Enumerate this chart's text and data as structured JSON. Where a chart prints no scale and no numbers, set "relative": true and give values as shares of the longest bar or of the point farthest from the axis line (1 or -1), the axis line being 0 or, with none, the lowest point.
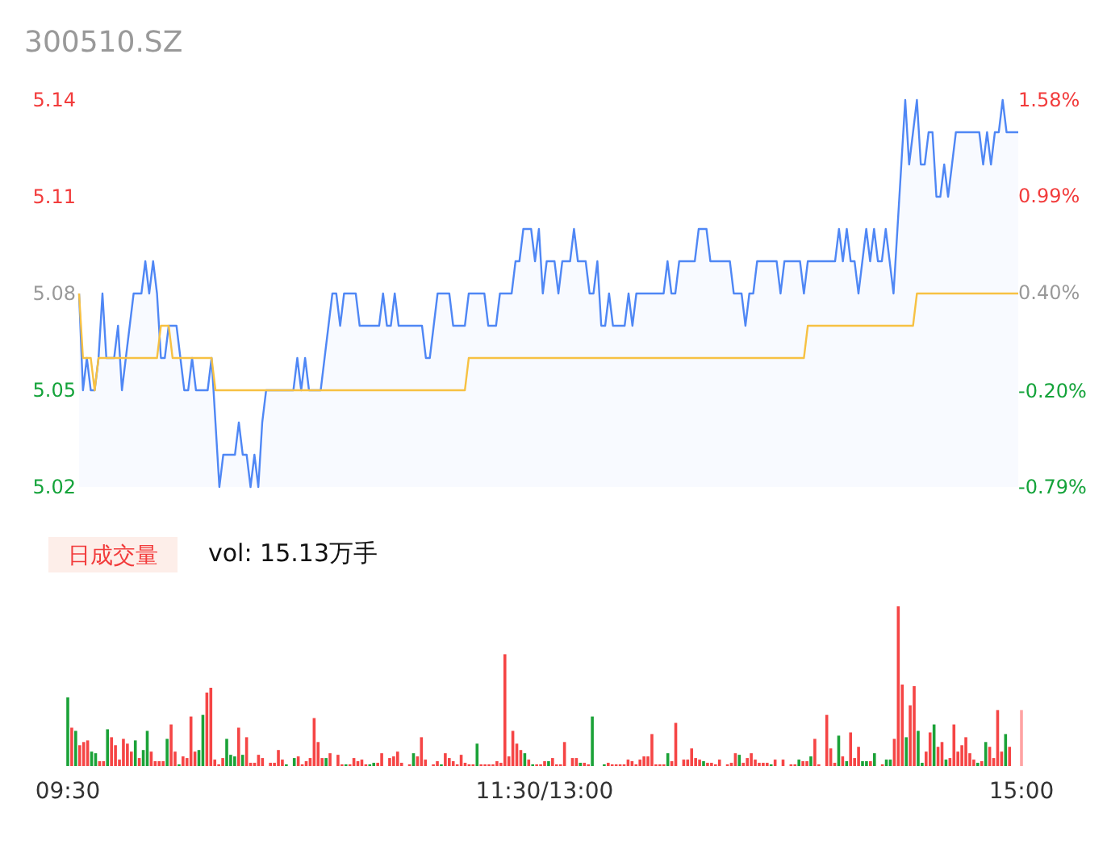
{
  "chart_data": [
    {
      "type": "line",
      "title": "300510.SZ",
      "ylim": [
        5.02,
        5.14
      ],
      "yticks": [
        5.02,
        5.05,
        5.08,
        5.11,
        5.14
      ],
      "y2lim": [
        -0.79,
        1.58
      ],
      "y2ticks": [
        {
          "value": -0.79,
          "label": "-0.79%"
        },
        {
          "value": -0.2,
          "label": "-0.20%"
        },
        {
          "value": 0.4,
          "label": "0.40%"
        },
        {
          "value": 0.99,
          "label": "0.99%"
        },
        {
          "value": 1.58,
          "label": "1.58%"
        }
      ],
      "tick_labels": "y",
      "categories": [
        null,
        null,
        null,
        null,
        null,
        null,
        null,
        null,
        null,
        null,
        null,
        null,
        null,
        null,
        null,
        null,
        null,
        null,
        null,
        null,
        null,
        null,
        null,
        null,
        null,
        null,
        null,
        null,
        null,
        null,
        null,
        null,
        null,
        null,
        null,
        null,
        null,
        null,
        null,
        null,
        null,
        null,
        null,
        null,
        null,
        null,
        null,
        null,
        null,
        null,
        null,
        null,
        null,
        null,
        null,
        null,
        null,
        null,
        null,
        null,
        null,
        null,
        null,
        null,
        null,
        null,
        null,
        null,
        null,
        null,
        null,
        null,
        null,
        null,
        null,
        null,
        null,
        null,
        null,
        null,
        null,
        null,
        null,
        null,
        null,
        null,
        null,
        null,
        null,
        null,
        null,
        null,
        null,
        null,
        null,
        null,
        null,
        null,
        null,
        null,
        null,
        null,
        null,
        null,
        null,
        null,
        null,
        null,
        null,
        null,
        null,
        null,
        null,
        null,
        null,
        null,
        null,
        null,
        null,
        null,
        null,
        null,
        null,
        null,
        null,
        null,
        null,
        null,
        null,
        null,
        null,
        null,
        null,
        null,
        null,
        null,
        null,
        null,
        null,
        null,
        null,
        null,
        null,
        null,
        null,
        null,
        null,
        null,
        null,
        null,
        null,
        null,
        null,
        null,
        null,
        null,
        null,
        null,
        null,
        null,
        null,
        null,
        null,
        null,
        null,
        null,
        null,
        null,
        null,
        null,
        null,
        null,
        null,
        null,
        null,
        null,
        null,
        null,
        null,
        null,
        null,
        null,
        null,
        null,
        null,
        null,
        null,
        null,
        null,
        null,
        null,
        null,
        null,
        null,
        null,
        null,
        null,
        null,
        null,
        null,
        null,
        null,
        null,
        null,
        null,
        null,
        null,
        null,
        null,
        null,
        null,
        null,
        null,
        null,
        null,
        null,
        null,
        null,
        null,
        null,
        null,
        null,
        null,
        null,
        null,
        null,
        null,
        null,
        null,
        null,
        null,
        null,
        null,
        null,
        null,
        null,
        null,
        null,
        null,
        null,
        null,
        null
      ],
      "series": [
        {
          "type": "area",
          "color": "#4f87f5",
          "values": [
            5.08,
            5.05,
            5.06,
            5.05,
            5.05,
            5.06,
            5.08,
            5.06,
            5.06,
            5.06,
            5.07,
            5.05,
            5.06,
            5.07,
            5.08,
            5.08,
            5.08,
            5.09,
            5.08,
            5.09,
            5.08,
            5.06,
            5.06,
            5.07,
            5.07,
            5.07,
            5.06,
            5.05,
            5.05,
            5.06,
            5.05,
            5.05,
            5.05,
            5.05,
            5.06,
            5.04,
            5.02,
            5.03,
            5.03,
            5.03,
            5.03,
            5.04,
            5.03,
            5.03,
            5.02,
            5.03,
            5.02,
            5.04,
            5.05,
            5.05,
            5.05,
            5.05,
            5.05,
            5.05,
            5.05,
            5.05,
            5.06,
            5.05,
            5.06,
            5.05,
            5.05,
            5.05,
            5.05,
            5.06,
            5.07,
            5.08,
            5.08,
            5.07,
            5.08,
            5.08,
            5.08,
            5.08,
            5.07,
            5.07,
            5.07,
            5.07,
            5.07,
            5.07,
            5.08,
            5.07,
            5.07,
            5.08,
            5.07,
            5.07,
            5.07,
            5.07,
            5.07,
            5.07,
            5.07,
            5.06,
            5.06,
            5.07,
            5.08,
            5.08,
            5.08,
            5.08,
            5.07,
            5.07,
            5.07,
            5.07,
            5.08,
            5.08,
            5.08,
            5.08,
            5.08,
            5.07,
            5.07,
            5.07,
            5.08,
            5.08,
            5.08,
            5.08,
            5.09,
            5.09,
            5.1,
            5.1,
            5.1,
            5.09,
            5.1,
            5.08,
            5.09,
            5.09,
            5.09,
            5.08,
            5.09,
            5.09,
            5.09,
            5.1,
            5.09,
            5.09,
            5.09,
            5.08,
            5.08,
            5.09,
            5.07,
            5.07,
            5.08,
            5.07,
            5.07,
            5.07,
            5.07,
            5.08,
            5.07,
            5.08,
            5.08,
            5.08,
            5.08,
            5.08,
            5.08,
            5.08,
            5.08,
            5.09,
            5.08,
            5.08,
            5.09,
            5.09,
            5.09,
            5.09,
            5.09,
            5.1,
            5.1,
            5.1,
            5.09,
            5.09,
            5.09,
            5.09,
            5.09,
            5.09,
            5.08,
            5.08,
            5.08,
            5.07,
            5.08,
            5.08,
            5.09,
            5.09,
            5.09,
            5.09,
            5.09,
            5.09,
            5.08,
            5.09,
            5.09,
            5.09,
            5.09,
            5.09,
            5.08,
            5.09,
            5.09,
            5.09,
            5.09,
            5.09,
            5.09,
            5.09,
            5.09,
            5.1,
            5.09,
            5.1,
            5.09,
            5.09,
            5.08,
            5.09,
            5.1,
            5.09,
            5.1,
            5.09,
            5.09,
            5.1,
            5.09,
            5.08,
            5.1,
            5.12,
            5.14,
            5.12,
            5.13,
            5.14,
            5.12,
            5.12,
            5.13,
            5.13,
            5.11,
            5.11,
            5.12,
            5.11,
            5.12,
            5.13,
            5.13,
            5.13,
            5.13,
            5.13,
            5.13,
            5.13,
            5.12,
            5.13,
            5.12,
            5.13,
            5.13,
            5.14,
            5.13,
            5.13,
            5.13,
            5.13
          ]
        },
        {
          "type": "line",
          "color": "#f7c143",
          "values": [
            5.08,
            5.06,
            5.06,
            5.06,
            5.05,
            5.06,
            5.06,
            5.06,
            5.06,
            5.06,
            5.06,
            5.06,
            5.06,
            5.06,
            5.06,
            5.06,
            5.06,
            5.06,
            5.06,
            5.06,
            5.06,
            5.07,
            5.07,
            5.07,
            5.06,
            5.06,
            5.06,
            5.06,
            5.06,
            5.06,
            5.06,
            5.06,
            5.06,
            5.06,
            5.06,
            5.05,
            5.05,
            5.05,
            5.05,
            5.05,
            5.05,
            5.05,
            5.05,
            5.05,
            5.05,
            5.05,
            5.05,
            5.05,
            5.05,
            5.05,
            5.05,
            5.05,
            5.05,
            5.05,
            5.05,
            5.05,
            5.05,
            5.05,
            5.05,
            5.05,
            5.05,
            5.05,
            5.05,
            5.05,
            5.05,
            5.05,
            5.05,
            5.05,
            5.05,
            5.05,
            5.05,
            5.05,
            5.05,
            5.05,
            5.05,
            5.05,
            5.05,
            5.05,
            5.05,
            5.05,
            5.05,
            5.05,
            5.05,
            5.05,
            5.05,
            5.05,
            5.05,
            5.05,
            5.05,
            5.05,
            5.05,
            5.05,
            5.05,
            5.05,
            5.05,
            5.05,
            5.05,
            5.05,
            5.05,
            5.05,
            5.06,
            5.06,
            5.06,
            5.06,
            5.06,
            5.06,
            5.06,
            5.06,
            5.06,
            5.06,
            5.06,
            5.06,
            5.06,
            5.06,
            5.06,
            5.06,
            5.06,
            5.06,
            5.06,
            5.06,
            5.06,
            5.06,
            5.06,
            5.06,
            5.06,
            5.06,
            5.06,
            5.06,
            5.06,
            5.06,
            5.06,
            5.06,
            5.06,
            5.06,
            5.06,
            5.06,
            5.06,
            5.06,
            5.06,
            5.06,
            5.06,
            5.06,
            5.06,
            5.06,
            5.06,
            5.06,
            5.06,
            5.06,
            5.06,
            5.06,
            5.06,
            5.06,
            5.06,
            5.06,
            5.06,
            5.06,
            5.06,
            5.06,
            5.06,
            5.06,
            5.06,
            5.06,
            5.06,
            5.06,
            5.06,
            5.06,
            5.06,
            5.06,
            5.06,
            5.06,
            5.06,
            5.06,
            5.06,
            5.06,
            5.06,
            5.06,
            5.06,
            5.06,
            5.06,
            5.06,
            5.06,
            5.06,
            5.06,
            5.06,
            5.06,
            5.06,
            5.06,
            5.07,
            5.07,
            5.07,
            5.07,
            5.07,
            5.07,
            5.07,
            5.07,
            5.07,
            5.07,
            5.07,
            5.07,
            5.07,
            5.07,
            5.07,
            5.07,
            5.07,
            5.07,
            5.07,
            5.07,
            5.07,
            5.07,
            5.07,
            5.07,
            5.07,
            5.07,
            5.07,
            5.07,
            5.08,
            5.08,
            5.08,
            5.08,
            5.08,
            5.08,
            5.08,
            5.08,
            5.08,
            5.08,
            5.08,
            5.08,
            5.08,
            5.08,
            5.08,
            5.08,
            5.08,
            5.08,
            5.08,
            5.08,
            5.08,
            5.08,
            5.08,
            5.08,
            5.08,
            5.08,
            5.08
          ]
        }
      ]
    },
    {
      "type": "bar",
      "title": "日成交量",
      "subtitle": "vol: 15.13万手",
      "relative": true,
      "categories": [
        "09:30",
        null,
        null,
        null,
        null,
        null,
        null,
        null,
        null,
        null,
        null,
        null,
        null,
        null,
        null,
        null,
        null,
        null,
        null,
        null,
        null,
        null,
        null,
        null,
        null,
        null,
        null,
        null,
        null,
        null,
        null,
        null,
        null,
        null,
        null,
        null,
        null,
        null,
        null,
        null,
        null,
        null,
        null,
        null,
        null,
        null,
        null,
        null,
        null,
        null,
        null,
        null,
        null,
        null,
        null,
        null,
        null,
        null,
        null,
        null,
        null,
        null,
        null,
        null,
        null,
        null,
        null,
        null,
        null,
        null,
        null,
        null,
        null,
        null,
        null,
        null,
        null,
        null,
        null,
        null,
        null,
        null,
        null,
        null,
        null,
        null,
        null,
        null,
        null,
        null,
        null,
        null,
        null,
        null,
        null,
        null,
        null,
        null,
        null,
        null,
        null,
        null,
        null,
        null,
        null,
        null,
        null,
        null,
        null,
        null,
        null,
        null,
        null,
        null,
        null,
        null,
        null,
        null,
        null,
        null,
        "11:30/13:00",
        null,
        null,
        null,
        null,
        null,
        null,
        null,
        null,
        null,
        null,
        null,
        null,
        null,
        null,
        null,
        null,
        null,
        null,
        null,
        null,
        null,
        null,
        null,
        null,
        null,
        null,
        null,
        null,
        null,
        null,
        null,
        null,
        null,
        null,
        null,
        null,
        null,
        null,
        null,
        null,
        null,
        null,
        null,
        null,
        null,
        null,
        null,
        null,
        null,
        null,
        null,
        null,
        null,
        null,
        null,
        null,
        null,
        null,
        null,
        null,
        null,
        null,
        null,
        null,
        null,
        null,
        null,
        null,
        null,
        null,
        null,
        null,
        null,
        null,
        null,
        null,
        null,
        null,
        null,
        null,
        null,
        null,
        null,
        null,
        null,
        null,
        null,
        null,
        null,
        null,
        null,
        null,
        null,
        null,
        null,
        null,
        null,
        null,
        null,
        null,
        null,
        null,
        null,
        null,
        null,
        null,
        null,
        null,
        null,
        null,
        null,
        null,
        null,
        null,
        null,
        null,
        null,
        null,
        null,
        "15:00"
      ],
      "values": [
        0.43,
        0.24,
        0.22,
        0.13,
        0.15,
        0.16,
        0.09,
        0.08,
        0.03,
        0.03,
        0.23,
        0.18,
        0.13,
        0.04,
        0.17,
        0.14,
        0.09,
        0.16,
        0.05,
        0.1,
        0.22,
        0.09,
        0.03,
        0.03,
        0.03,
        0.17,
        0.26,
        0.09,
        0.01,
        0.06,
        0.05,
        0.31,
        0.09,
        0.1,
        0.32,
        0.46,
        0.49,
        0.04,
        0.01,
        0.05,
        0.17,
        0.07,
        0.06,
        0.24,
        0.07,
        0.18,
        0.02,
        0.02,
        0.07,
        0.05,
        0,
        0.02,
        0.02,
        0.1,
        0.04,
        0.01,
        0,
        0.05,
        0.06,
        0.01,
        0.03,
        0.05,
        0.3,
        0.15,
        0.05,
        0.05,
        0.08,
        0,
        0.07,
        0.01,
        0.01,
        0.01,
        0.05,
        0.03,
        0.04,
        0.01,
        0.01,
        0.02,
        0.02,
        0.08,
        0,
        0.05,
        0.06,
        0.09,
        0.02,
        0,
        0.01,
        0.08,
        0.06,
        0.18,
        0.04,
        0,
        0.01,
        0.03,
        0.01,
        0.08,
        0.05,
        0.03,
        0.01,
        0.07,
        0.02,
        0.01,
        0.01,
        0.14,
        0.01,
        0.01,
        0.01,
        0.01,
        0.03,
        0.02,
        0.7,
        0.06,
        0.22,
        0.14,
        0.1,
        0.08,
        0.04,
        0.01,
        0.01,
        0.01,
        0.03,
        0.03,
        0.05,
        0.01,
        0.01,
        0.15,
        0,
        0.05,
        0.05,
        0.02,
        0.02,
        0.01,
        0.31,
        0,
        0,
        0.01,
        0.02,
        0.01,
        0.01,
        0.01,
        0.01,
        0.04,
        0.03,
        0.01,
        0.04,
        0.06,
        0.06,
        0.2,
        0.01,
        0.01,
        0.01,
        0.08,
        0.03,
        0.27,
        0,
        0.04,
        0.04,
        0.11,
        0.05,
        0.04,
        0.03,
        0.02,
        0.02,
        0.01,
        0.04,
        0,
        0.01,
        0.02,
        0.08,
        0.07,
        0.02,
        0.05,
        0.08,
        0.04,
        0.02,
        0.02,
        0.02,
        0.01,
        0.04,
        0,
        0.04,
        0,
        0.01,
        0.01,
        0.04,
        0.03,
        0.03,
        0.06,
        0.17,
        0.01,
        0,
        0.32,
        0.11,
        0.02,
        0.19,
        0.06,
        0.03,
        0.21,
        0.05,
        0.12,
        0.03,
        0.03,
        0.03,
        0.08,
        0,
        0.01,
        0.04,
        0.04,
        0.17,
        1,
        0.51,
        0.18,
        0.38,
        0.5,
        0.22,
        0.02,
        0.09,
        0.21,
        0.26,
        0.12,
        0.15,
        0.04,
        0.05,
        0.26,
        0.09,
        0.13,
        0.18,
        0.08,
        0.04,
        0.02,
        0.03,
        0.15,
        0.12,
        0.05,
        0.35,
        0.09,
        0.2,
        0.12,
        0,
        0,
        0.35
      ],
      "colors": [
        "#1ba238",
        "#f54545",
        "#1ba238",
        "#f54545",
        "#f54545",
        "#f54545",
        "#1ba238",
        "#1ba238",
        "#f54545",
        "#f54545",
        "#1ba238",
        "#f54545",
        "#f54545",
        "#f54545",
        "#f54545",
        "#f54545",
        "#f54545",
        "#1ba238",
        "#f54545",
        "#1ba238",
        "#1ba238",
        "#f54545",
        "#f54545",
        "#f54545",
        "#f54545",
        "#1ba238",
        "#f54545",
        "#f54545",
        "#1ba238",
        "#f54545",
        "#f54545",
        "#f54545",
        "#f54545",
        "#1ba238",
        "#1ba238",
        "#f54545",
        "#f54545",
        "#f54545",
        "#f54545",
        "#f54545",
        "#1ba238",
        "#1ba238",
        "#1ba238",
        "#f54545",
        "#1ba238",
        "#f54545",
        "#f54545",
        "#f54545",
        "#f54545",
        "#f54545",
        "#f54545",
        "#f54545",
        "#f54545",
        "#f54545",
        "#f54545",
        "#1ba238",
        "#f54545",
        "#1ba238",
        "#f54545",
        "#f54545",
        "#f54545",
        "#f54545",
        "#f54545",
        "#f54545",
        "#f54545",
        "#1ba238",
        "#f54545",
        "#f54545",
        "#f54545",
        "#f54545",
        "#1ba238",
        "#f54545",
        "#f54545",
        "#f54545",
        "#f54545",
        "#f54545",
        "#1ba238",
        "#1ba238",
        "#f54545",
        "#f54545",
        "#f54545",
        "#f54545",
        "#f54545",
        "#f54545",
        "#f54545",
        "#f54545",
        "#f54545",
        "#1ba238",
        "#f54545",
        "#f54545",
        "#f54545",
        "#f54545",
        "#f54545",
        "#f54545",
        "#1ba238",
        "#f54545",
        "#f54545",
        "#f54545",
        "#f54545",
        "#f54545",
        "#f54545",
        "#f54545",
        "#f54545",
        "#1ba238",
        "#f54545",
        "#f54545",
        "#f54545",
        "#f54545",
        "#f54545",
        "#f54545",
        "#f54545",
        "#f54545",
        "#f54545",
        "#f54545",
        "#f54545",
        "#1ba238",
        "#f54545",
        "#1ba238",
        "#f54545",
        "#f54545",
        "#f54545",
        "#1ba238",
        "#f54545",
        "#f54545",
        "#f54545",
        "#f54545",
        "#f54545",
        "#f54545",
        "#f54545",
        "#1ba238",
        "#f54545",
        "#f54545",
        "#1ba238",
        "#f54545",
        "#f54545",
        "#1ba238",
        "#f54545",
        "#f54545",
        "#f54545",
        "#f54545",
        "#f54545",
        "#f54545",
        "#f54545",
        "#f54545",
        "#f54545",
        "#f54545",
        "#f54545",
        "#f54545",
        "#f54545",
        "#f54545",
        "#f54545",
        "#1ba238",
        "#f54545",
        "#f54545",
        "#f54545",
        "#f54545",
        "#f54545",
        "#f54545",
        "#f54545",
        "#f54545",
        "#1ba238",
        "#f54545",
        "#f54545",
        "#f54545",
        "#f54545",
        "#f54545",
        "#f54545",
        "#f54545",
        "#f54545",
        "#1ba238",
        "#f54545",
        "#f54545",
        "#f54545",
        "#f54545",
        "#f54545",
        "#f54545",
        "#f54545",
        "#1ba238",
        "#f54545",
        "#f54545",
        "#f54545",
        "#f54545",
        "#f54545",
        "#f54545",
        "#1ba238",
        "#f54545",
        "#f54545",
        "#1ba238",
        "#f54545",
        "#f54545",
        "#f54545",
        "#f54545",
        "#f54545",
        "#f54545",
        "#1ba238",
        "#f54545",
        "#1ba238",
        "#f54545",
        "#f54545",
        "#f54545",
        "#1ba238",
        "#1ba238",
        "#f54545",
        "#1ba238",
        "#f54545",
        "#f54545",
        "#1ba238",
        "#1ba238",
        "#f54545",
        "#f54545",
        "#f54545",
        "#1ba238",
        "#f54545",
        "#f54545",
        "#1ba238",
        "#1ba238",
        "#f54545",
        "#f54545",
        "#1ba238",
        "#f54545",
        "#f54545",
        "#1ba238",
        "#f54545",
        "#f54545",
        "#f54545",
        "#f54545",
        "#f54545",
        "#f54545",
        "#f54545",
        "#1ba238",
        "#f54545",
        "#1ba238",
        "#f54545",
        "#f54545",
        "#f54545",
        "#f54545",
        "#1ba238",
        "#f54545",
        "#f54545",
        "#f54545",
        "#ffa3a3"
      ]
    }
  ]
}
